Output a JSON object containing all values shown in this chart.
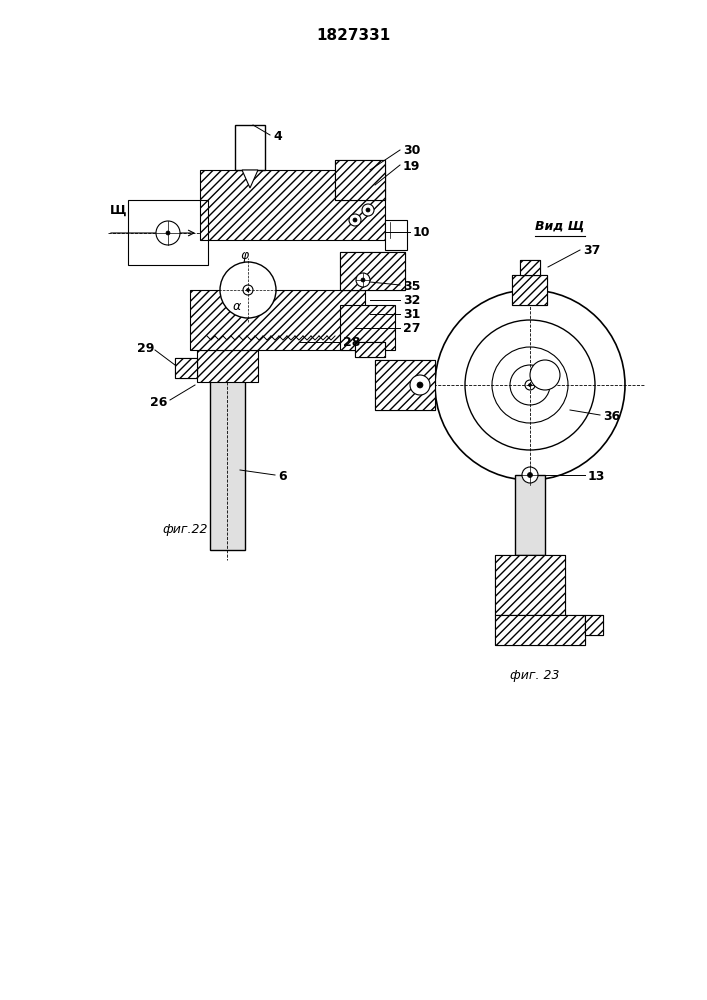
{
  "title": "1827331",
  "title_fontsize": 11,
  "bg_color": "#ffffff",
  "fig_label1": "фиг.22",
  "fig_label2": "фиг. 23",
  "view_label": "Вид Щ",
  "part_labels_fig1": [
    "4",
    "30",
    "19",
    "Щ",
    "10",
    "35",
    "32",
    "31",
    "27",
    "29",
    "28",
    "26",
    "6"
  ],
  "part_labels_fig2": [
    "37",
    "36",
    "13"
  ],
  "hatch_pattern": "////",
  "line_color": "#000000",
  "shaft_color": "#e0e0e0"
}
